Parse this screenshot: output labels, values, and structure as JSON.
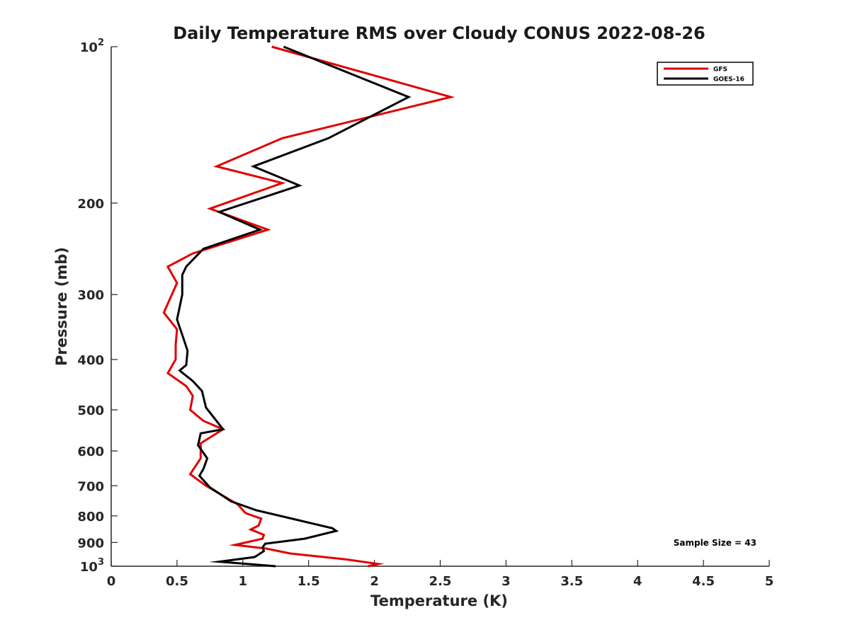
{
  "chart_data": {
    "type": "line",
    "title": "Daily Temperature RMS over Cloudy CONUS 2022-08-26",
    "xlabel": "Temperature (K)",
    "ylabel": "Pressure (mb)",
    "xlim": [
      0,
      5
    ],
    "ylim": [
      100,
      1000
    ],
    "y_scale": "log",
    "y_reversed": true,
    "grid": false,
    "legend_position": "top-right",
    "x_ticks": [
      "0",
      "0.5",
      "1",
      "1.5",
      "2",
      "2.5",
      "3",
      "3.5",
      "4",
      "4.5",
      "5"
    ],
    "y_ticks": [
      {
        "value": 100,
        "base": "10",
        "exp": "2"
      },
      {
        "value": 200,
        "label": "200"
      },
      {
        "value": 300,
        "label": "300"
      },
      {
        "value": 400,
        "label": "400"
      },
      {
        "value": 500,
        "label": "500"
      },
      {
        "value": 600,
        "label": "600"
      },
      {
        "value": 700,
        "label": "700"
      },
      {
        "value": 800,
        "label": "800"
      },
      {
        "value": 900,
        "label": "900"
      },
      {
        "value": 1000,
        "base": "10",
        "exp": "3"
      }
    ],
    "annotation": "Sample Size = 43",
    "series": [
      {
        "name": "GFS",
        "color": "#e00000",
        "points": [
          [
            1.22,
            100
          ],
          [
            2.58,
            125
          ],
          [
            1.3,
            150
          ],
          [
            0.8,
            170
          ],
          [
            1.3,
            183
          ],
          [
            0.75,
            205
          ],
          [
            1.19,
            225
          ],
          [
            0.62,
            250
          ],
          [
            0.43,
            265
          ],
          [
            0.5,
            285
          ],
          [
            0.4,
            325
          ],
          [
            0.5,
            350
          ],
          [
            0.49,
            375
          ],
          [
            0.49,
            400
          ],
          [
            0.43,
            425
          ],
          [
            0.57,
            450
          ],
          [
            0.62,
            470
          ],
          [
            0.6,
            500
          ],
          [
            0.7,
            525
          ],
          [
            0.85,
            545
          ],
          [
            0.68,
            580
          ],
          [
            0.68,
            620
          ],
          [
            0.6,
            665
          ],
          [
            0.72,
            700
          ],
          [
            0.96,
            760
          ],
          [
            1.02,
            790
          ],
          [
            1.14,
            810
          ],
          [
            1.12,
            835
          ],
          [
            1.06,
            850
          ],
          [
            1.16,
            870
          ],
          [
            1.15,
            885
          ],
          [
            0.94,
            910
          ],
          [
            1.18,
            925
          ],
          [
            1.36,
            945
          ],
          [
            1.78,
            970
          ],
          [
            2.03,
            990
          ],
          [
            1.95,
            1000
          ]
        ]
      },
      {
        "name": "GOES-16",
        "color": "#000000",
        "points": [
          [
            1.31,
            100
          ],
          [
            2.26,
            125
          ],
          [
            1.65,
            150
          ],
          [
            1.08,
            170
          ],
          [
            1.43,
            185
          ],
          [
            0.82,
            208
          ],
          [
            1.13,
            225
          ],
          [
            0.7,
            245
          ],
          [
            0.57,
            265
          ],
          [
            0.54,
            275
          ],
          [
            0.54,
            300
          ],
          [
            0.5,
            335
          ],
          [
            0.55,
            365
          ],
          [
            0.58,
            385
          ],
          [
            0.57,
            410
          ],
          [
            0.52,
            420
          ],
          [
            0.62,
            440
          ],
          [
            0.69,
            460
          ],
          [
            0.72,
            495
          ],
          [
            0.85,
            545
          ],
          [
            0.68,
            555
          ],
          [
            0.66,
            585
          ],
          [
            0.73,
            620
          ],
          [
            0.7,
            650
          ],
          [
            0.67,
            670
          ],
          [
            0.75,
            705
          ],
          [
            0.91,
            750
          ],
          [
            1.1,
            780
          ],
          [
            1.68,
            845
          ],
          [
            1.71,
            855
          ],
          [
            1.47,
            885
          ],
          [
            1.17,
            905
          ],
          [
            1.15,
            920
          ],
          [
            1.16,
            935
          ],
          [
            1.09,
            960
          ],
          [
            0.82,
            980
          ],
          [
            1.25,
            1000
          ]
        ]
      }
    ]
  }
}
